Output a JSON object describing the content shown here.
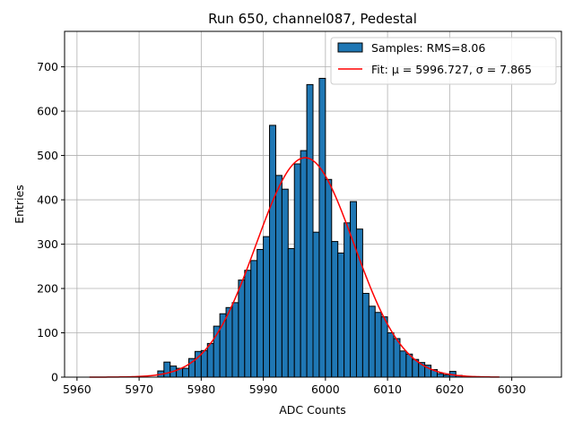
{
  "chart_data": {
    "type": "bar",
    "title": "Run 650, channel087, Pedestal",
    "xlabel": "ADC Counts",
    "ylabel": "Entries",
    "xlim": [
      5958,
      6038
    ],
    "ylim": [
      0,
      780
    ],
    "xticks": [
      5960,
      5970,
      5980,
      5990,
      6000,
      6010,
      6020,
      6030
    ],
    "yticks": [
      0,
      100,
      200,
      300,
      400,
      500,
      600,
      700
    ],
    "grid": true,
    "legend_position": "top-right",
    "colors": {
      "bars": "#1f77b4",
      "bar_edge": "#000000",
      "fit": "#ff0000",
      "grid": "#b0b0b0"
    },
    "histogram": {
      "name": "Samples: RMS=8.06",
      "bin_width": 1,
      "bins": [
        {
          "x": 5973,
          "y": 14
        },
        {
          "x": 5974,
          "y": 34
        },
        {
          "x": 5975,
          "y": 25
        },
        {
          "x": 5976,
          "y": 20
        },
        {
          "x": 5977,
          "y": 20
        },
        {
          "x": 5978,
          "y": 42
        },
        {
          "x": 5979,
          "y": 58
        },
        {
          "x": 5980,
          "y": 60
        },
        {
          "x": 5981,
          "y": 76
        },
        {
          "x": 5982,
          "y": 115
        },
        {
          "x": 5983,
          "y": 143
        },
        {
          "x": 5984,
          "y": 157
        },
        {
          "x": 5985,
          "y": 168
        },
        {
          "x": 5986,
          "y": 219
        },
        {
          "x": 5987,
          "y": 241
        },
        {
          "x": 5988,
          "y": 263
        },
        {
          "x": 5989,
          "y": 288
        },
        {
          "x": 5990,
          "y": 317
        },
        {
          "x": 5991,
          "y": 568
        },
        {
          "x": 5992,
          "y": 455
        },
        {
          "x": 5993,
          "y": 424
        },
        {
          "x": 5994,
          "y": 290
        },
        {
          "x": 5995,
          "y": 481
        },
        {
          "x": 5996,
          "y": 511
        },
        {
          "x": 5997,
          "y": 660
        },
        {
          "x": 5998,
          "y": 327
        },
        {
          "x": 5999,
          "y": 674
        },
        {
          "x": 6000,
          "y": 446
        },
        {
          "x": 6001,
          "y": 306
        },
        {
          "x": 6002,
          "y": 280
        },
        {
          "x": 6003,
          "y": 348
        },
        {
          "x": 6004,
          "y": 396
        },
        {
          "x": 6005,
          "y": 334
        },
        {
          "x": 6006,
          "y": 189
        },
        {
          "x": 6007,
          "y": 160
        },
        {
          "x": 6008,
          "y": 146
        },
        {
          "x": 6009,
          "y": 136
        },
        {
          "x": 6010,
          "y": 100
        },
        {
          "x": 6011,
          "y": 87
        },
        {
          "x": 6012,
          "y": 59
        },
        {
          "x": 6013,
          "y": 52
        },
        {
          "x": 6014,
          "y": 40
        },
        {
          "x": 6015,
          "y": 33
        },
        {
          "x": 6016,
          "y": 27
        },
        {
          "x": 6017,
          "y": 17
        },
        {
          "x": 6018,
          "y": 8
        },
        {
          "x": 6019,
          "y": 5
        },
        {
          "x": 6020,
          "y": 13
        },
        {
          "x": 6021,
          "y": 4
        }
      ]
    },
    "fit": {
      "name": "Fit: μ = 5996.727, σ = 7.865",
      "mu": 5996.727,
      "sigma": 7.865,
      "amplitude": 495,
      "x_range": [
        5962,
        6028
      ]
    }
  }
}
